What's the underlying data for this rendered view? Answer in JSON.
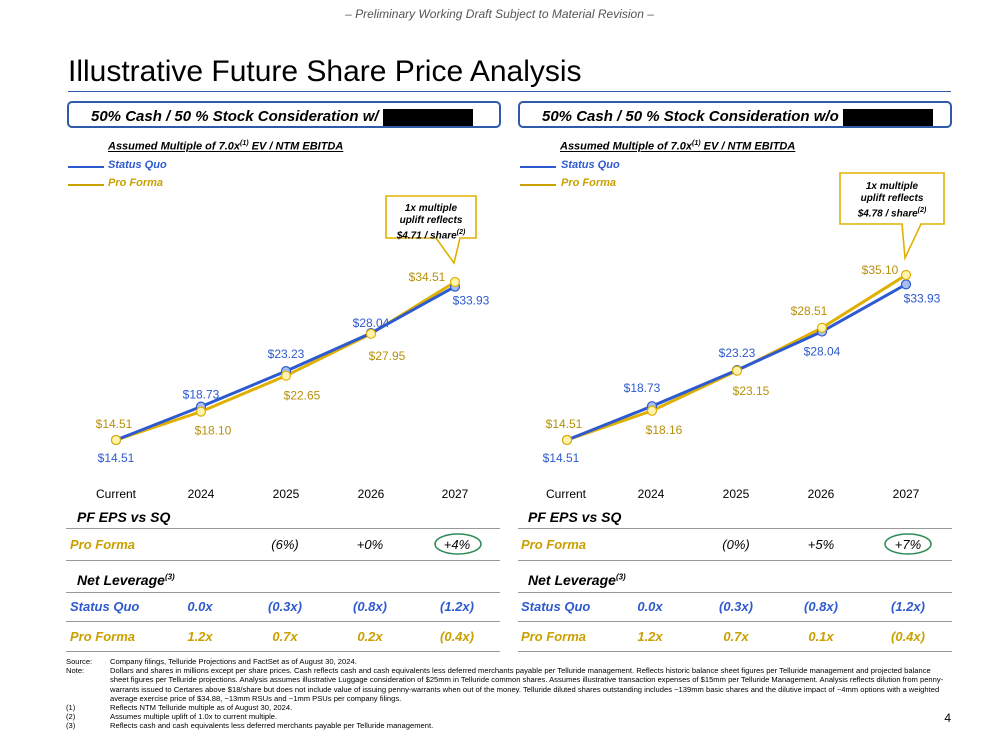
{
  "watermark": "– Preliminary Working Draft Subject to Material Revision –",
  "title": "Illustrative Future Share Price Analysis",
  "colors": {
    "status_quo": "#2E5AD0",
    "pro_forma": "#E0B000",
    "accent": "#2E5AA8",
    "circle": "#2E8B57"
  },
  "panels": [
    {
      "header": "50% Cash / 50 % Stock Consideration w/",
      "multiple_label": "Assumed Multiple of 7.0x",
      "multiple_sup": "(1)",
      "multiple_suffix": " EV / NTM EBITDA",
      "legend_sq": "Status Quo",
      "legend_pf": "Pro Forma",
      "callout": {
        "line1": "1x multiple",
        "line2": "uplift reflects",
        "line3": "$4.71 / share",
        "sup": "(2)"
      },
      "chart_data": {
        "type": "line",
        "categories": [
          "Current",
          "2024",
          "2025",
          "2026",
          "2027"
        ],
        "series": [
          {
            "name": "Status Quo",
            "values": [
              14.51,
              18.73,
              23.23,
              28.04,
              33.93
            ],
            "labels": [
              "$14.51",
              "$18.73",
              "$23.23",
              "$28.04",
              "$33.93"
            ]
          },
          {
            "name": "Pro Forma",
            "values": [
              14.51,
              18.1,
              22.65,
              27.95,
              34.51
            ],
            "labels": [
              "$14.51",
              "$18.10",
              "$22.65",
              "$27.95",
              "$34.51"
            ]
          }
        ],
        "ylim": [
          14.51,
          34.51
        ]
      },
      "eps_title": "PF EPS vs SQ",
      "eps_row": {
        "label": "Pro Forma",
        "values": [
          "",
          "(6%)",
          "+0%",
          "+4%"
        ]
      },
      "lev_title": "Net Leverage",
      "lev_sup": "(3)",
      "lev_rows": [
        {
          "label": "Status Quo",
          "values": [
            "0.0x",
            "(0.3x)",
            "(0.8x)",
            "(1.2x)"
          ]
        },
        {
          "label": "Pro Forma",
          "values": [
            "1.2x",
            "0.7x",
            "0.2x",
            "(0.4x)"
          ]
        }
      ]
    },
    {
      "header": "50% Cash / 50 % Stock Consideration w/o",
      "multiple_label": "Assumed Multiple of 7.0x",
      "multiple_sup": "(1)",
      "multiple_suffix": " EV / NTM EBITDA",
      "legend_sq": "Status Quo",
      "legend_pf": "Pro Forma",
      "callout": {
        "line1": "1x multiple",
        "line2": "uplift reflects",
        "line3": "$4.78 / share",
        "sup": "(2)"
      },
      "chart_data": {
        "type": "line",
        "categories": [
          "Current",
          "2024",
          "2025",
          "2026",
          "2027"
        ],
        "series": [
          {
            "name": "Status Quo",
            "values": [
              14.51,
              18.73,
              23.23,
              28.04,
              33.93
            ],
            "labels": [
              "$14.51",
              "$18.73",
              "$23.23",
              "$28.04",
              "$33.93"
            ]
          },
          {
            "name": "Pro Forma",
            "values": [
              14.51,
              18.16,
              23.15,
              28.51,
              35.1
            ],
            "labels": [
              "$14.51",
              "$18.16",
              "$23.15",
              "$28.51",
              "$35.10"
            ]
          }
        ],
        "ylim": [
          14.51,
          35.1
        ]
      },
      "eps_title": "PF EPS vs SQ",
      "eps_row": {
        "label": "Pro Forma",
        "values": [
          "",
          "(0%)",
          "+5%",
          "+7%"
        ]
      },
      "lev_title": "Net Leverage",
      "lev_sup": "(3)",
      "lev_rows": [
        {
          "label": "Status Quo",
          "values": [
            "0.0x",
            "(0.3x)",
            "(0.8x)",
            "(1.2x)"
          ]
        },
        {
          "label": "Pro Forma",
          "values": [
            "1.2x",
            "0.7x",
            "0.1x",
            "(0.4x)"
          ]
        }
      ]
    }
  ],
  "footnotes": {
    "source_label": "Source:",
    "source": "Company filings, Telluride Projections and FactSet as of August 30, 2024.",
    "note_label": "Note:",
    "note": "Dollars and shares in millions except per share prices. Cash reflects cash and cash equivalents less deferred merchants payable per Telluride management. Reflects historic balance sheet figures per Telluride management and projected balance sheet figures per Telluride projections. Analysis assumes illustrative Luggage consideration of $25mm in Telluride common shares. Assumes illustrative transaction expenses of $15mm per Telluride Management. Analysis reflects dilution from penny-warrants issued to Certares above $18/share but does not include value of issuing penny-warrants when out of the money. Telluride diluted shares outstanding includes ~139mm basic shares and the dilutive impact of ~4mm options with a weighted average exercise price of $34.88, ~13mm RSUs and ~1mm PSUs per company filings.",
    "items": [
      {
        "num": "(1)",
        "text": "Reflects NTM Telluride multiple as of August 30, 2024."
      },
      {
        "num": "(2)",
        "text": "Assumes multiple uplift of 1.0x to current multiple."
      },
      {
        "num": "(3)",
        "text": "Reflects cash and cash equivalents less deferred merchants payable per Telluride management."
      }
    ]
  },
  "page_number": "4"
}
